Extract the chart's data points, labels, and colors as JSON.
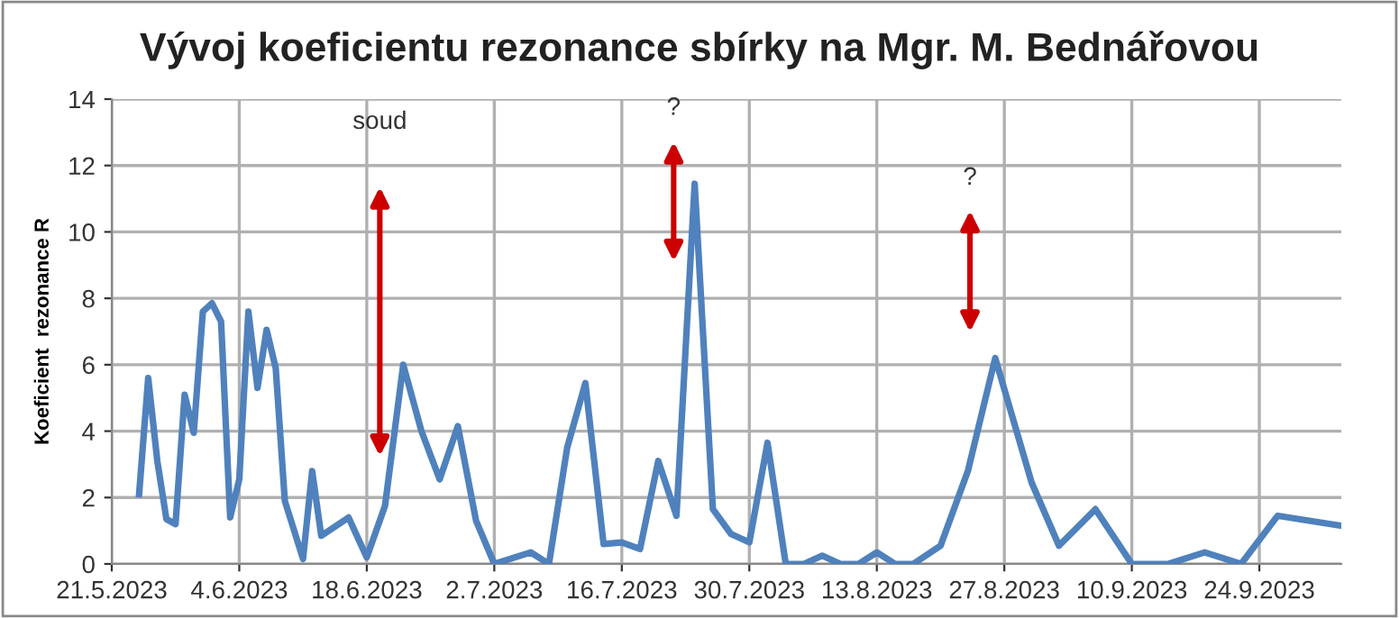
{
  "chart_data": {
    "type": "line",
    "title": "Vývoj koeficientu rezonance sbírky na Mgr. M. Bednářovou",
    "ylabel": "Koeficient  rezonance R",
    "x": [
      "2023-05-24",
      "2023-05-25",
      "2023-05-26",
      "2023-05-27",
      "2023-05-28",
      "2023-05-29",
      "2023-05-30",
      "2023-05-31",
      "2023-06-01",
      "2023-06-02",
      "2023-06-03",
      "2023-06-04",
      "2023-06-05",
      "2023-06-06",
      "2023-06-07",
      "2023-06-08",
      "2023-06-09",
      "2023-06-11",
      "2023-06-12",
      "2023-06-13",
      "2023-06-16",
      "2023-06-18",
      "2023-06-20",
      "2023-06-22",
      "2023-06-24",
      "2023-06-26",
      "2023-06-28",
      "2023-06-30",
      "2023-07-02",
      "2023-07-06",
      "2023-07-08",
      "2023-07-10",
      "2023-07-12",
      "2023-07-14",
      "2023-07-16",
      "2023-07-18",
      "2023-07-20",
      "2023-07-22",
      "2023-07-24",
      "2023-07-26",
      "2023-07-28",
      "2023-07-30",
      "2023-08-01",
      "2023-08-03",
      "2023-08-05",
      "2023-08-07",
      "2023-08-09",
      "2023-08-11",
      "2023-08-13",
      "2023-08-15",
      "2023-08-17",
      "2023-08-20",
      "2023-08-23",
      "2023-08-26",
      "2023-08-30",
      "2023-09-02",
      "2023-09-06",
      "2023-09-10",
      "2023-09-14",
      "2023-09-18",
      "2023-09-22",
      "2023-09-26",
      "2023-10-03"
    ],
    "series": [
      {
        "color": "#4f81bd",
        "values": [
          2.1,
          5.6,
          3.1,
          1.35,
          1.2,
          5.1,
          3.95,
          7.6,
          7.85,
          7.3,
          1.4,
          2.55,
          7.6,
          5.3,
          7.05,
          5.9,
          1.9,
          0.15,
          2.8,
          0.85,
          1.4,
          0.2,
          1.75,
          6.0,
          4.0,
          2.55,
          4.15,
          1.3,
          0,
          0.35,
          0,
          3.5,
          5.45,
          0.6,
          0.65,
          0.45,
          3.1,
          1.45,
          11.45,
          1.65,
          0.9,
          0.65,
          3.65,
          0,
          0,
          0.25,
          0,
          0,
          0.35,
          0,
          0,
          0.55,
          2.8,
          6.2,
          2.45,
          0.55,
          1.65,
          0,
          0,
          0.35,
          0,
          1.45,
          1.15
        ]
      }
    ],
    "xlim": [
      "2023-05-21",
      "2023-10-03"
    ],
    "xticks": [
      {
        "value": "2023-05-21",
        "label": "21.5.2023"
      },
      {
        "value": "2023-06-04",
        "label": "4.6.2023"
      },
      {
        "value": "2023-06-18",
        "label": "18.6.2023"
      },
      {
        "value": "2023-07-02",
        "label": "2.7.2023"
      },
      {
        "value": "2023-07-16",
        "label": "16.7.2023"
      },
      {
        "value": "2023-07-30",
        "label": "30.7.2023"
      },
      {
        "value": "2023-08-13",
        "label": "13.8.2023"
      },
      {
        "value": "2023-08-27",
        "label": "27.8.2023"
      },
      {
        "value": "2023-09-10",
        "label": "10.9.2023"
      },
      {
        "value": "2023-09-24",
        "label": "24.9.2023"
      }
    ],
    "ylim": [
      0,
      14
    ],
    "yticks": [
      0,
      2,
      4,
      6,
      8,
      10,
      12,
      14
    ],
    "grid": true,
    "marker": "none",
    "line_style": "solid",
    "annotations": [
      "soud",
      "?",
      "?"
    ]
  }
}
